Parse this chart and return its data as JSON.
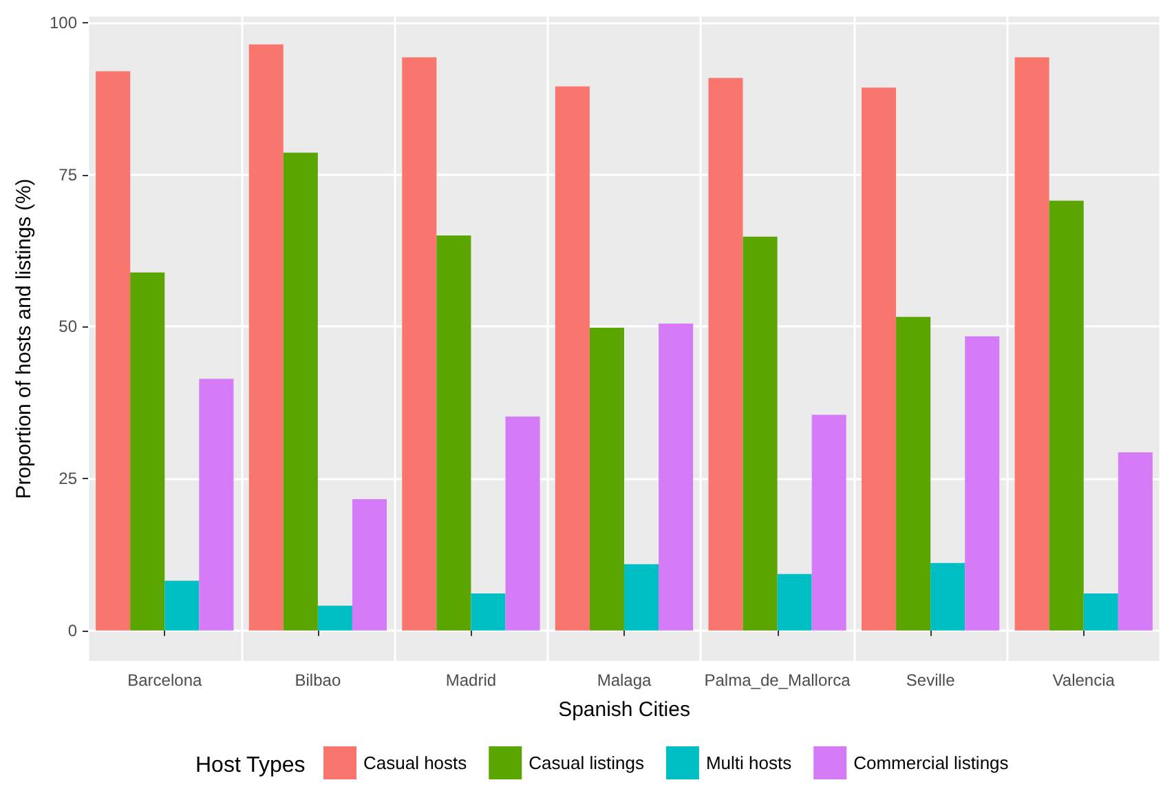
{
  "chart_data": {
    "type": "bar",
    "xlabel": "Spanish Cities",
    "ylabel": "Proportion of hosts and listings (%)",
    "legend_title": "Host Types",
    "categories": [
      "Barcelona",
      "Bilbao",
      "Madrid",
      "Malaga",
      "Palma_de_Mallorca",
      "Seville",
      "Valencia"
    ],
    "series": [
      {
        "name": "Casual hosts",
        "color": "#f8766d",
        "values": [
          92,
          96.4,
          94.3,
          89.5,
          90.9,
          89.3,
          94.3
        ]
      },
      {
        "name": "Casual listings",
        "color": "#5aa500",
        "values": [
          58.9,
          78.6,
          65,
          49.8,
          64.8,
          51.6,
          70.7
        ]
      },
      {
        "name": "Multi hosts",
        "color": "#00bfc4",
        "values": [
          8.2,
          4.1,
          6.1,
          10.9,
          9.3,
          11.1,
          6.1
        ]
      },
      {
        "name": "Commercial listings",
        "color": "#d57bf7",
        "values": [
          41.4,
          21.6,
          35.2,
          50.5,
          35.5,
          48.4,
          29.3
        ]
      }
    ],
    "ylim": [
      -5,
      101
    ],
    "yticks": [
      0,
      25,
      50,
      75,
      100
    ],
    "grid": true,
    "legend": "bottom"
  }
}
